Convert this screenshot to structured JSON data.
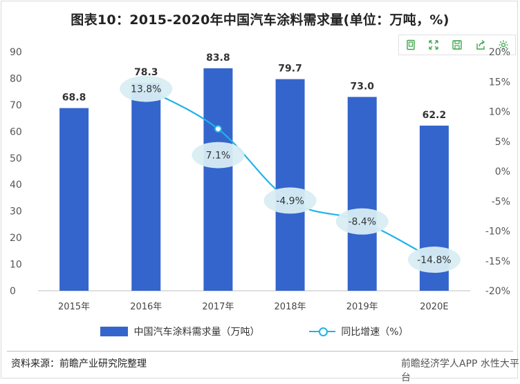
{
  "title": "图表10：2015-2020年中国汽车涂料需求量(单位：万吨，%)",
  "toolbar": {
    "icons": [
      "copy-icon",
      "expand-icon",
      "save-icon",
      "share-icon",
      "gear-icon"
    ]
  },
  "chart_data": {
    "type": "bar",
    "categories": [
      "2015年",
      "2016年",
      "2017年",
      "2018年",
      "2019年",
      "2020E"
    ],
    "series": [
      {
        "name": "中国汽车涂料需求量（万吨）",
        "type": "bar",
        "axis": "left",
        "values": [
          68.8,
          78.3,
          83.8,
          79.7,
          73.0,
          62.2
        ],
        "labels": [
          "68.8",
          "78.3",
          "83.8",
          "79.7",
          "73.0",
          "62.2"
        ],
        "color": "#3465cc"
      },
      {
        "name": "同比增速（%）",
        "type": "line",
        "axis": "right",
        "values": [
          null,
          13.8,
          7.1,
          -4.9,
          -8.4,
          -14.8
        ],
        "labels": [
          "",
          "13.8%",
          "7.1%",
          "-4.9%",
          "-8.4%",
          "-14.8%"
        ],
        "color": "#1fb3e8"
      }
    ],
    "y_left": {
      "ylim": [
        0,
        90
      ],
      "ticks": [
        "0",
        "10",
        "20",
        "30",
        "40",
        "50",
        "60",
        "70",
        "80",
        "90"
      ]
    },
    "y_right": {
      "ylim": [
        -20,
        20
      ],
      "ticks": [
        "-20%",
        "-15%",
        "-10%",
        "-5%",
        "0%",
        "5%",
        "10%",
        "15%",
        "20%"
      ]
    },
    "legend": "bottom",
    "grid": false,
    "label_bubble_color": "#d8edf3"
  },
  "source": "资料来源：前瞻产业研究院整理",
  "watermark": "前瞻经济学人APP 水性大平台"
}
